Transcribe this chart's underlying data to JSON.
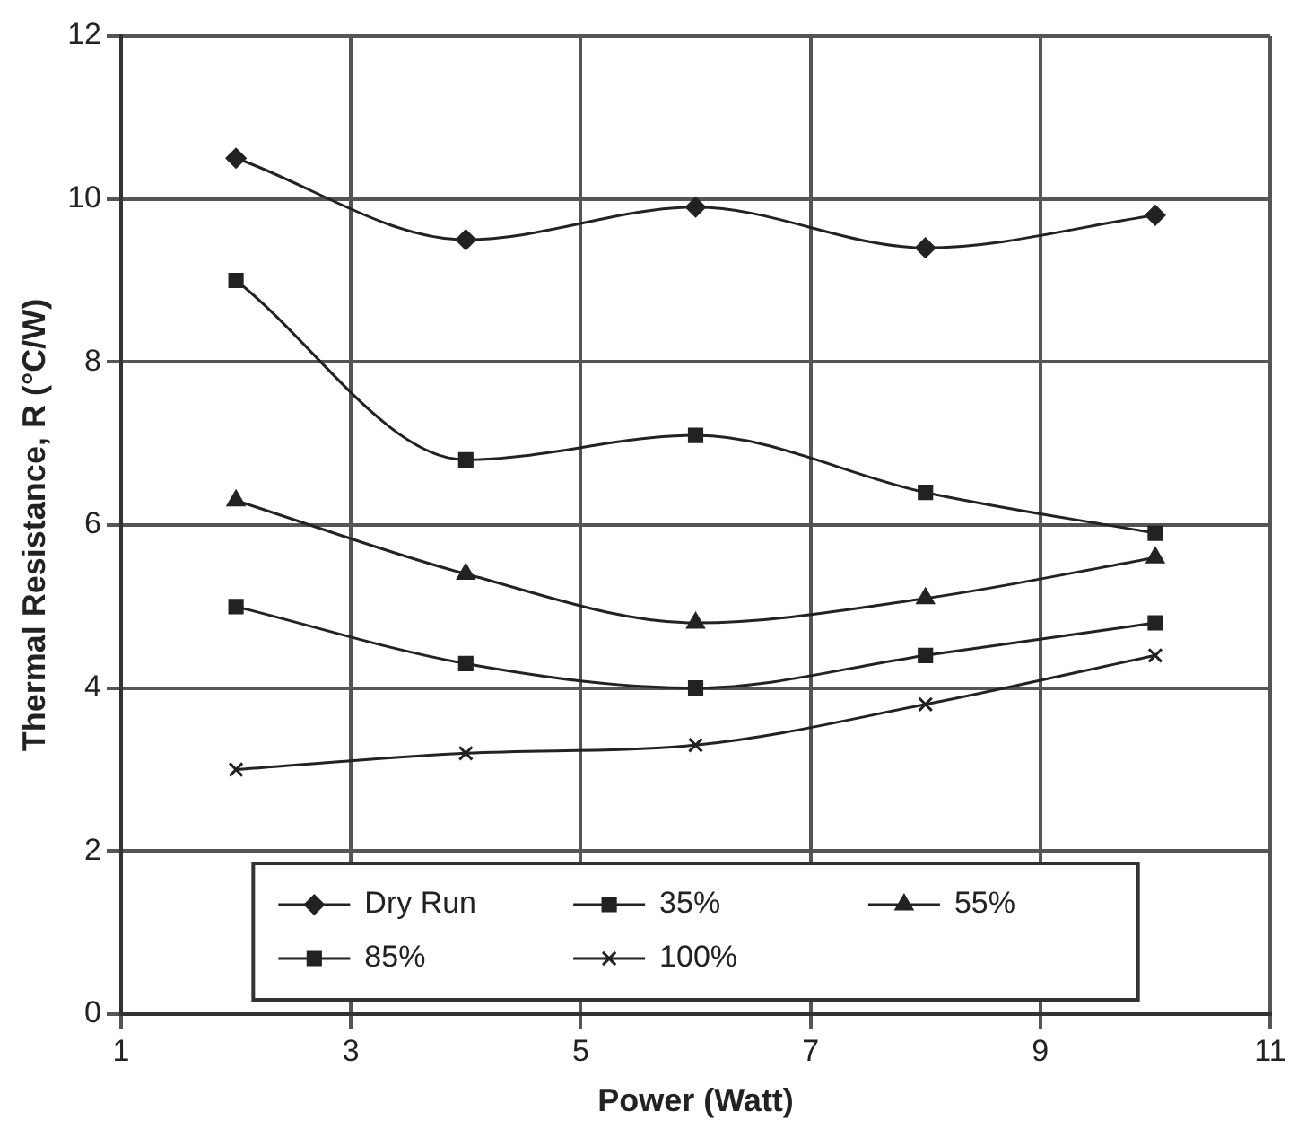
{
  "chart_data": {
    "type": "line",
    "xlabel": "Power (Watt)",
    "ylabel": "Thermal Resistance, R (°C/W)",
    "x": [
      2,
      4,
      6,
      8,
      10
    ],
    "series": [
      {
        "name": "Dry Run",
        "color": "#222222",
        "values": [
          10.5,
          9.5,
          9.9,
          9.4,
          9.8
        ],
        "marker": "diamond"
      },
      {
        "name": "35%",
        "color": "#222222",
        "values": [
          9.0,
          6.8,
          7.1,
          6.4,
          5.9
        ],
        "marker": "square"
      },
      {
        "name": "55%",
        "color": "#222222",
        "values": [
          6.3,
          5.4,
          4.8,
          5.1,
          5.6
        ],
        "marker": "triangle"
      },
      {
        "name": "85%",
        "color": "#222222",
        "values": [
          5.0,
          4.3,
          4.0,
          4.4,
          4.8
        ],
        "marker": "square"
      },
      {
        "name": "100%",
        "color": "#222222",
        "values": [
          3.0,
          3.2,
          3.3,
          3.8,
          4.4
        ],
        "marker": "cross"
      }
    ],
    "xlim": [
      1,
      11
    ],
    "xticks": [
      1,
      3,
      5,
      7,
      9,
      11
    ],
    "ylim": [
      0,
      12
    ],
    "yticks": [
      0,
      2,
      4,
      6,
      8,
      10,
      12
    ],
    "grid": true,
    "legend": "bottom",
    "line_style": "solid"
  }
}
